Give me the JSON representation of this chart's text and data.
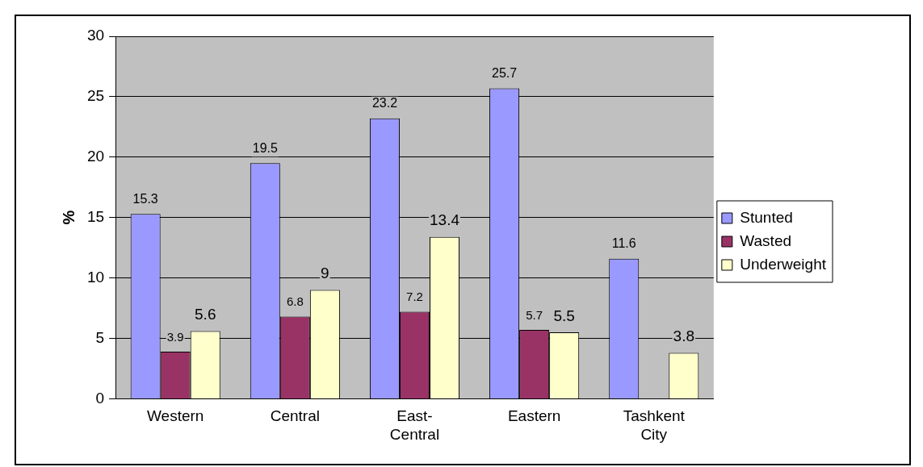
{
  "chart_data": {
    "type": "bar",
    "ylabel": "%",
    "categories": [
      "Western",
      "Central",
      "East-Central",
      "Eastern",
      "Tashkent City"
    ],
    "series": [
      {
        "name": "Stunted",
        "color": "#9999ff",
        "values": [
          15.3,
          19.5,
          23.2,
          25.7,
          11.6
        ]
      },
      {
        "name": "Wasted",
        "color": "#993366",
        "values": [
          3.9,
          6.8,
          7.2,
          5.7,
          null
        ]
      },
      {
        "name": "Underweight",
        "color": "#ffffcc",
        "values": [
          5.6,
          9,
          13.4,
          5.5,
          3.8
        ]
      }
    ],
    "ylim": [
      0,
      30
    ],
    "yticks": [
      0,
      5,
      10,
      15,
      20,
      25,
      30
    ],
    "grid": "y",
    "legend": "right",
    "data_labels": true
  }
}
